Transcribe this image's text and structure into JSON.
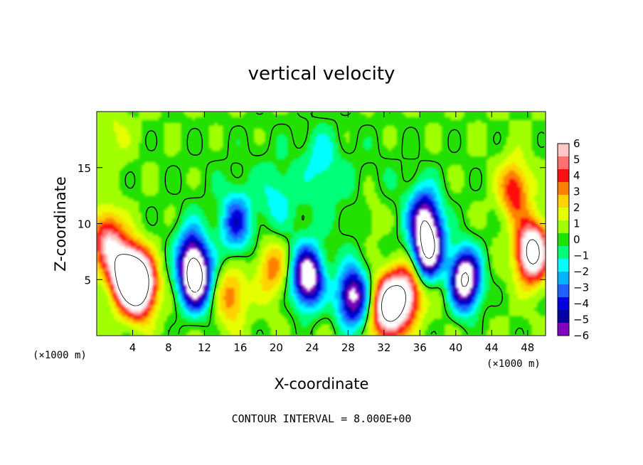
{
  "chart_data": {
    "type": "heatmap",
    "title": "vertical velocity",
    "xlabel": "X-coordinate",
    "ylabel": "Z-coordinate",
    "x_unit": "(×1000 m)",
    "y_unit": "(×1000 m)",
    "footer": "CONTOUR INTERVAL = 8.000E+00",
    "xlim": [
      0,
      50
    ],
    "ylim": [
      0,
      20
    ],
    "x_ticks": [
      4,
      8,
      12,
      16,
      20,
      24,
      28,
      32,
      36,
      40,
      44,
      48
    ],
    "y_ticks": [
      5,
      10,
      15
    ],
    "colorbar": {
      "ticks": [
        6,
        5,
        4,
        3,
        2,
        1,
        0,
        -1,
        -2,
        -3,
        -4,
        -5,
        -6
      ],
      "min": -6,
      "max": 6,
      "colors": [
        "#ffc8c8",
        "#ff7070",
        "#ff1010",
        "#ff8000",
        "#ffd200",
        "#e6ff00",
        "#a0ff00",
        "#20e000",
        "#00ff78",
        "#00ffff",
        "#00b4ff",
        "#2060ff",
        "#0000e0",
        "#0000a0",
        "#8000c0"
      ]
    },
    "features": [
      {
        "x": 3.2,
        "z": 5.5,
        "value": 9
      },
      {
        "x": 4.8,
        "z": 4.5,
        "value": 10
      },
      {
        "x": 1.2,
        "z": 8.5,
        "value": 5
      },
      {
        "x": 11.0,
        "z": 5.0,
        "value": -9
      },
      {
        "x": 10.5,
        "z": 7.5,
        "value": -4
      },
      {
        "x": 15.5,
        "z": 10.0,
        "value": -4
      },
      {
        "x": 15.0,
        "z": 3.5,
        "value": 3
      },
      {
        "x": 19.5,
        "z": 6.0,
        "value": 3
      },
      {
        "x": 23.5,
        "z": 5.2,
        "value": -8
      },
      {
        "x": 28.5,
        "z": 3.5,
        "value": -7
      },
      {
        "x": 32.5,
        "z": 2.5,
        "value": 9
      },
      {
        "x": 34.5,
        "z": 3.8,
        "value": 6
      },
      {
        "x": 36.5,
        "z": 10.5,
        "value": -6
      },
      {
        "x": 37.0,
        "z": 7.5,
        "value": -8
      },
      {
        "x": 41.0,
        "z": 5.0,
        "value": -9
      },
      {
        "x": 46.5,
        "z": 13.0,
        "value": 4
      },
      {
        "x": 48.5,
        "z": 7.5,
        "value": 9
      },
      {
        "x": 30.5,
        "z": 11.0,
        "value": 1
      },
      {
        "x": 38.5,
        "z": 5.0,
        "value": 1
      },
      {
        "x": 2.0,
        "z": 18.0,
        "value": 1
      },
      {
        "x": 25.0,
        "z": 16.0,
        "value": -1.5
      },
      {
        "x": 20.0,
        "z": 12.0,
        "value": -1.2
      }
    ]
  }
}
